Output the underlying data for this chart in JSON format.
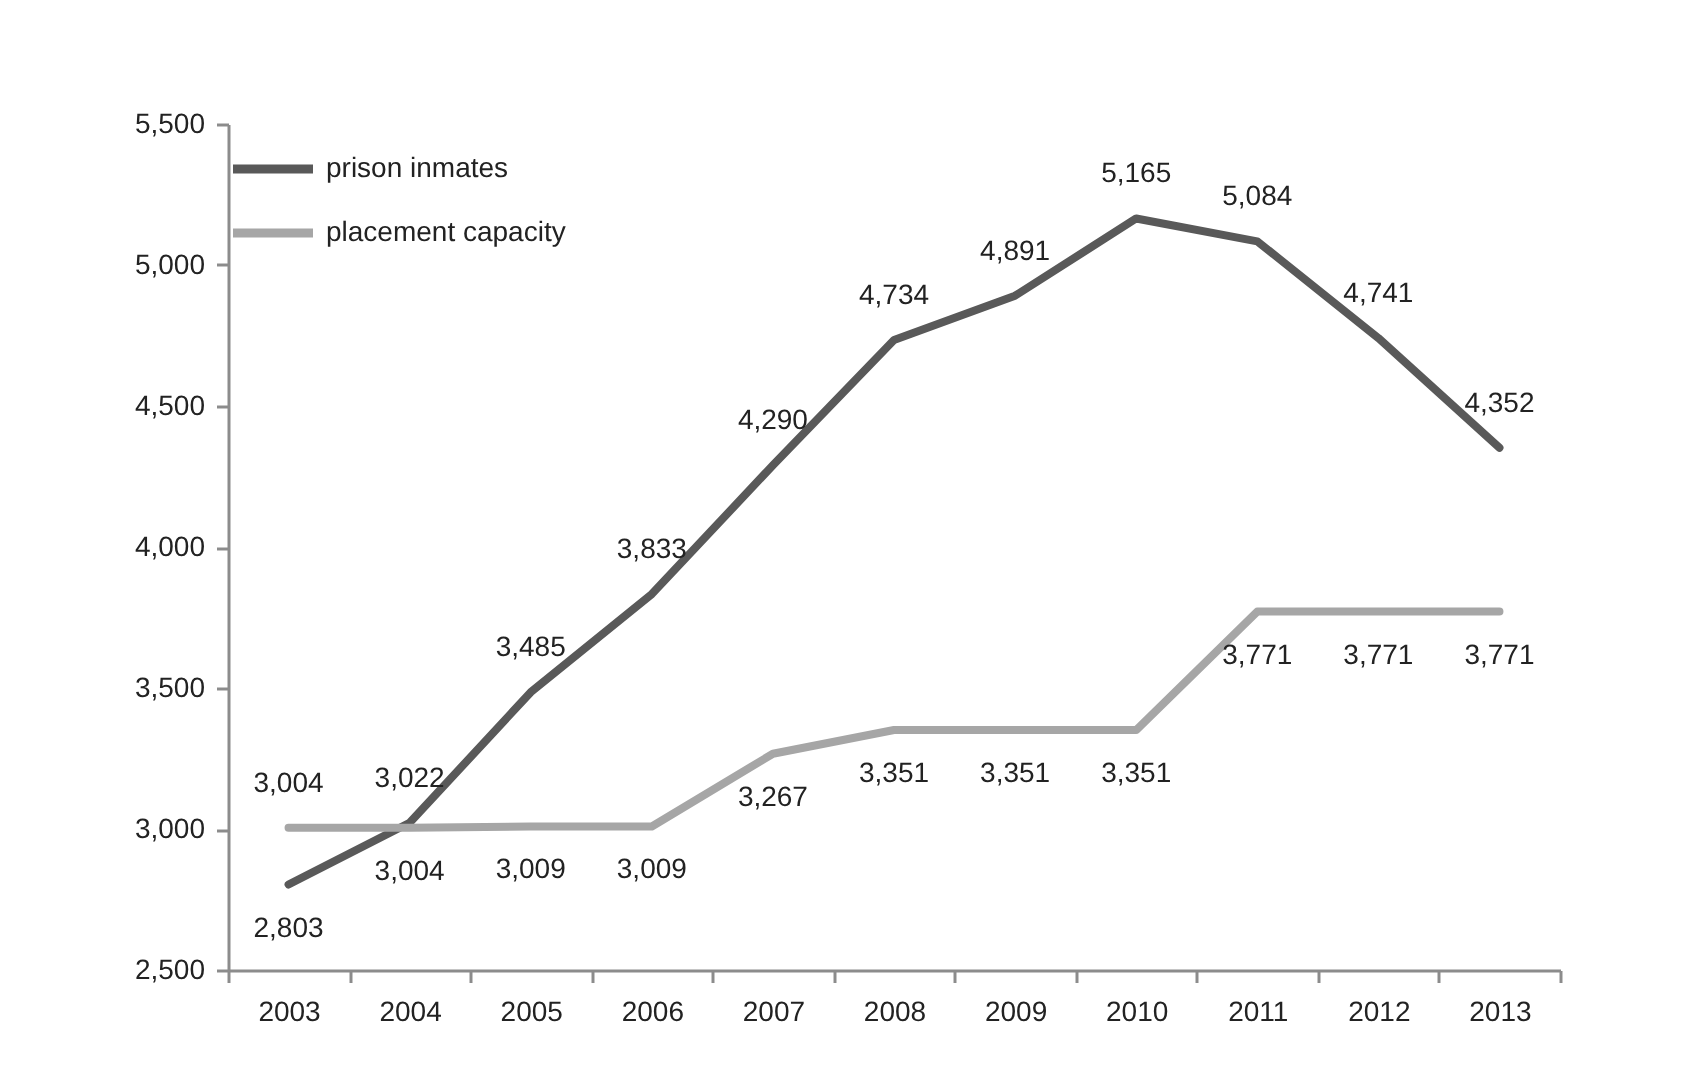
{
  "chart_data": {
    "type": "line",
    "categories": [
      "2003",
      "2004",
      "2005",
      "2006",
      "2007",
      "2008",
      "2009",
      "2010",
      "2011",
      "2012",
      "2013"
    ],
    "series": [
      {
        "name": "prison inmates",
        "color": "#595959",
        "values": [
          2803,
          3022,
          3485,
          3833,
          4290,
          4734,
          4891,
          5165,
          5084,
          4741,
          4352
        ],
        "value_labels": [
          "2,803",
          "3,022",
          "3,485",
          "3,833",
          "4,290",
          "4,734",
          "4,891",
          "5,165",
          "5,084",
          "4,741",
          "4,352"
        ]
      },
      {
        "name": "placement capacity",
        "color": "#a6a6a6",
        "values": [
          3004,
          3004,
          3009,
          3009,
          3267,
          3351,
          3351,
          3351,
          3771,
          3771,
          3771
        ],
        "value_labels": [
          "3,004",
          "3,004",
          "3,009",
          "3,009",
          "3,267",
          "3,351",
          "3,351",
          "3,351",
          "3,771",
          "3,771",
          "3,771"
        ]
      }
    ],
    "ylim": [
      2500,
      5500
    ],
    "yticks": [
      {
        "value": 2500,
        "label": "2,500"
      },
      {
        "value": 3000,
        "label": "3,000"
      },
      {
        "value": 3500,
        "label": "3,500"
      },
      {
        "value": 4000,
        "label": "4,000"
      },
      {
        "value": 4500,
        "label": "4,500"
      },
      {
        "value": 5000,
        "label": "5,000"
      },
      {
        "value": 5500,
        "label": "5,500"
      }
    ],
    "legend": "top left"
  }
}
